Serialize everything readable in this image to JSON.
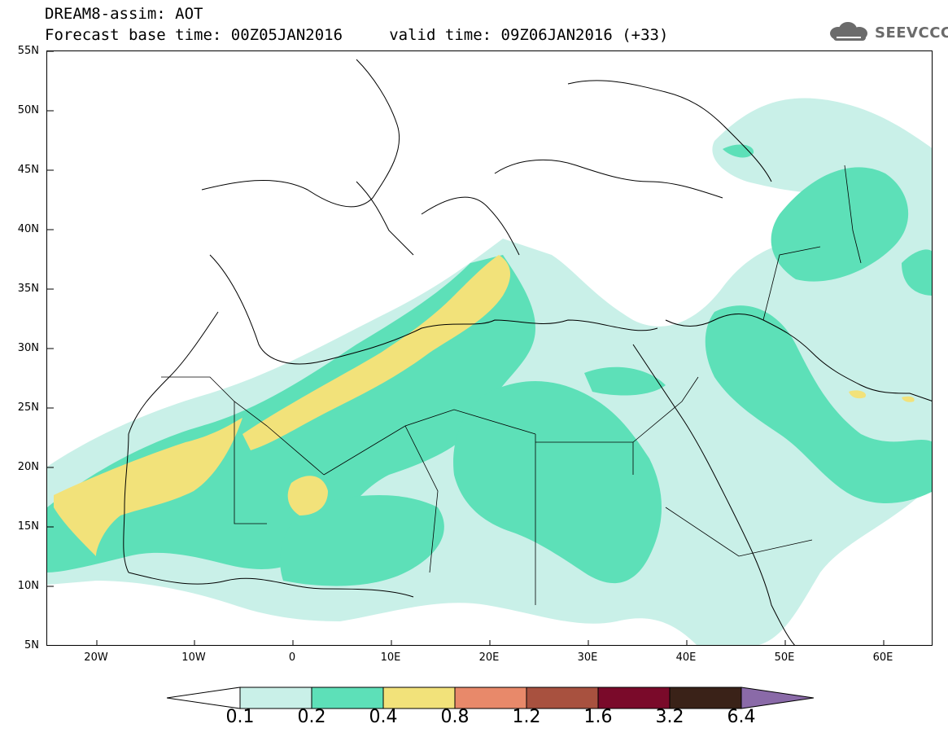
{
  "header": {
    "title_line1": "DREAM8-assim: AOT",
    "title_line2": "Forecast base time: 00Z05JAN2016     valid time: 09Z06JAN2016 (+33)",
    "logo_text": "SEEVCCC"
  },
  "map": {
    "lat_labels": [
      "55N",
      "50N",
      "45N",
      "40N",
      "35N",
      "30N",
      "25N",
      "20N",
      "15N",
      "10N",
      "5N"
    ],
    "lon_labels": [
      "20W",
      "10W",
      "0",
      "10E",
      "20E",
      "30E",
      "40E",
      "50E",
      "60E"
    ],
    "lon_range": [
      -25,
      65
    ],
    "lat_range": [
      5,
      55
    ]
  },
  "colorbar": {
    "labels": [
      "0.1",
      "0.2",
      "0.4",
      "0.8",
      "1.2",
      "1.6",
      "3.2",
      "6.4"
    ],
    "colors": [
      "#c9f0e8",
      "#5de0b8",
      "#f2e27a",
      "#e8896a",
      "#a8513f",
      "#7a0a2a",
      "#3a2218",
      "#8a6aa8"
    ]
  },
  "legend": {
    "aot_colors": {
      "0.1-0.2": "#c9f0e8",
      "0.2-0.4": "#5de0b8",
      "0.4-0.8": "#f2e27a"
    }
  }
}
